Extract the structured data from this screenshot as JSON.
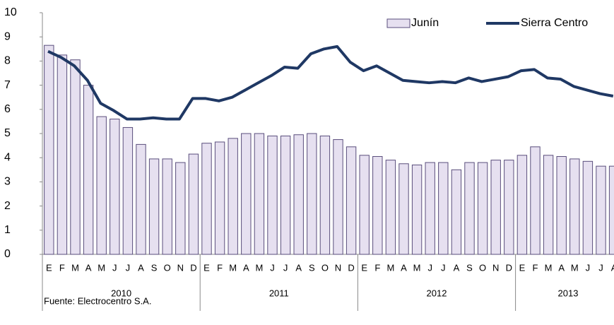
{
  "chart_data": {
    "type": "bar_line",
    "categories": [
      "E",
      "F",
      "M",
      "A",
      "M",
      "J",
      "J",
      "A",
      "S",
      "O",
      "N",
      "D",
      "E",
      "F",
      "M",
      "A",
      "M",
      "J",
      "J",
      "A",
      "S",
      "O",
      "N",
      "D",
      "E",
      "F",
      "M",
      "A",
      "M",
      "J",
      "J",
      "A",
      "S",
      "O",
      "N",
      "D",
      "E",
      "F",
      "M",
      "A",
      "M",
      "J",
      "J",
      "A"
    ],
    "groups": [
      "2010",
      "2011",
      "2012",
      "2013"
    ],
    "series": [
      {
        "name": "Junín",
        "type": "bar",
        "color": "#e6e0f0",
        "stroke": "#5a4e7c",
        "values": [
          8.65,
          8.25,
          8.05,
          7.0,
          5.7,
          5.6,
          5.25,
          4.55,
          3.95,
          3.95,
          3.8,
          4.15,
          4.6,
          4.65,
          4.8,
          5.0,
          5.0,
          4.9,
          4.9,
          4.95,
          5.0,
          4.9,
          4.75,
          4.45,
          4.1,
          4.05,
          3.9,
          3.75,
          3.7,
          3.8,
          3.8,
          3.5,
          3.8,
          3.8,
          3.9,
          3.9,
          4.1,
          4.45,
          4.1,
          4.05,
          3.95,
          3.85,
          3.65,
          3.65
        ]
      },
      {
        "name": "Sierra Centro",
        "type": "line",
        "color": "#1f3864",
        "values": [
          8.4,
          8.15,
          7.8,
          7.2,
          6.25,
          5.95,
          5.6,
          5.6,
          5.65,
          5.6,
          5.6,
          6.45,
          6.45,
          6.35,
          6.5,
          6.8,
          7.1,
          7.4,
          7.75,
          7.7,
          8.3,
          8.5,
          8.6,
          7.95,
          7.6,
          7.8,
          7.5,
          7.2,
          7.15,
          7.1,
          7.15,
          7.1,
          7.3,
          7.15,
          7.25,
          7.35,
          7.6,
          7.65,
          7.3,
          7.25,
          6.95,
          6.8,
          6.65,
          6.55
        ]
      }
    ],
    "ylim": [
      0,
      10
    ],
    "yticks": [
      0,
      1,
      2,
      3,
      4,
      5,
      6,
      7,
      8,
      9,
      10
    ],
    "source": "Fuente: Electrocentro S.A."
  }
}
